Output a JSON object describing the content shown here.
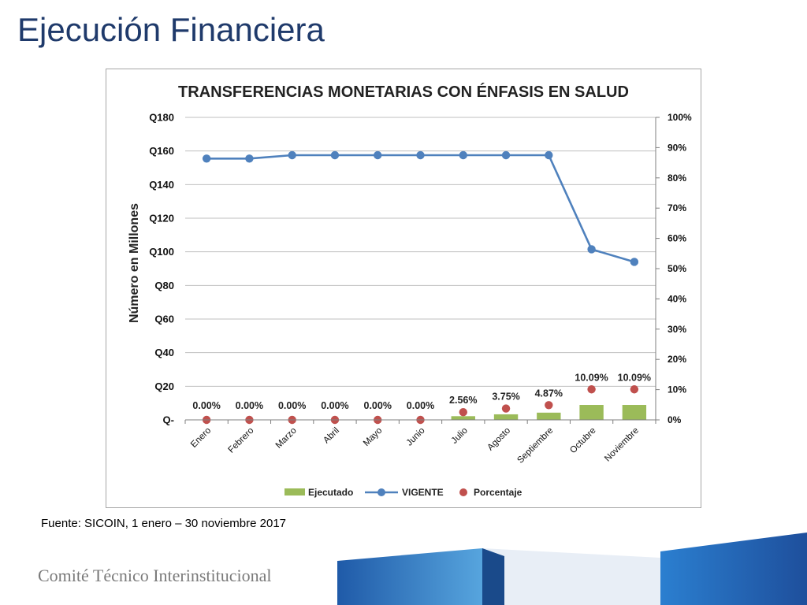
{
  "slide": {
    "title": "Ejecución Financiera",
    "source": "Fuente: SICOIN, 1 enero – 30 noviembre 2017",
    "footer_org": "Comité Técnico Interinstitucional"
  },
  "chart_data": {
    "type": "bar",
    "title": "TRANSFERENCIAS MONETARIAS CON ÉNFASIS EN SALUD",
    "ylabel": "Número en Millones",
    "categories": [
      "Enero",
      "Febrero",
      "Marzo",
      "Abril",
      "Mayo",
      "Junio",
      "Julio",
      "Agosto",
      "Septiembre",
      "Octubre",
      "Noviembre"
    ],
    "y_left": {
      "ylim": [
        0,
        180
      ],
      "ticks": [
        0,
        20,
        40,
        60,
        80,
        100,
        120,
        140,
        160,
        180
      ],
      "tick_labels": [
        "Q-",
        "Q20",
        "Q40",
        "Q60",
        "Q80",
        "Q100",
        "Q120",
        "Q140",
        "Q160",
        "Q180"
      ]
    },
    "y_right": {
      "ylim": [
        0,
        100
      ],
      "ticks": [
        0,
        10,
        20,
        30,
        40,
        50,
        60,
        70,
        80,
        90,
        100
      ],
      "tick_labels": [
        "0%",
        "10%",
        "20%",
        "30%",
        "40%",
        "50%",
        "60%",
        "70%",
        "80%",
        "90%",
        "100%"
      ]
    },
    "series": [
      {
        "name": "Ejecutado",
        "type": "bar",
        "axis": "left",
        "color": "#9bbb59",
        "values": [
          0,
          0,
          0,
          0,
          0,
          0,
          2.2,
          3.3,
          4.3,
          8.9,
          8.9
        ]
      },
      {
        "name": "VIGENTE",
        "type": "line",
        "axis": "left",
        "color": "#4f81bd",
        "values": [
          155.5,
          155.5,
          157.5,
          157.5,
          157.5,
          157.5,
          157.5,
          157.5,
          157.5,
          101.5,
          94
        ]
      },
      {
        "name": "Porcentaje",
        "type": "scatter",
        "axis": "right",
        "color": "#c0504d",
        "values": [
          0,
          0,
          0,
          0,
          0,
          0,
          2.56,
          3.75,
          4.87,
          10.09,
          10.09
        ],
        "labels": [
          "0.00%",
          "0.00%",
          "0.00%",
          "0.00%",
          "0.00%",
          "0.00%",
          "2.56%",
          "3.75%",
          "4.87%",
          "10.09%",
          "10.09%"
        ]
      }
    ],
    "grid": true,
    "legend_position": "bottom"
  }
}
